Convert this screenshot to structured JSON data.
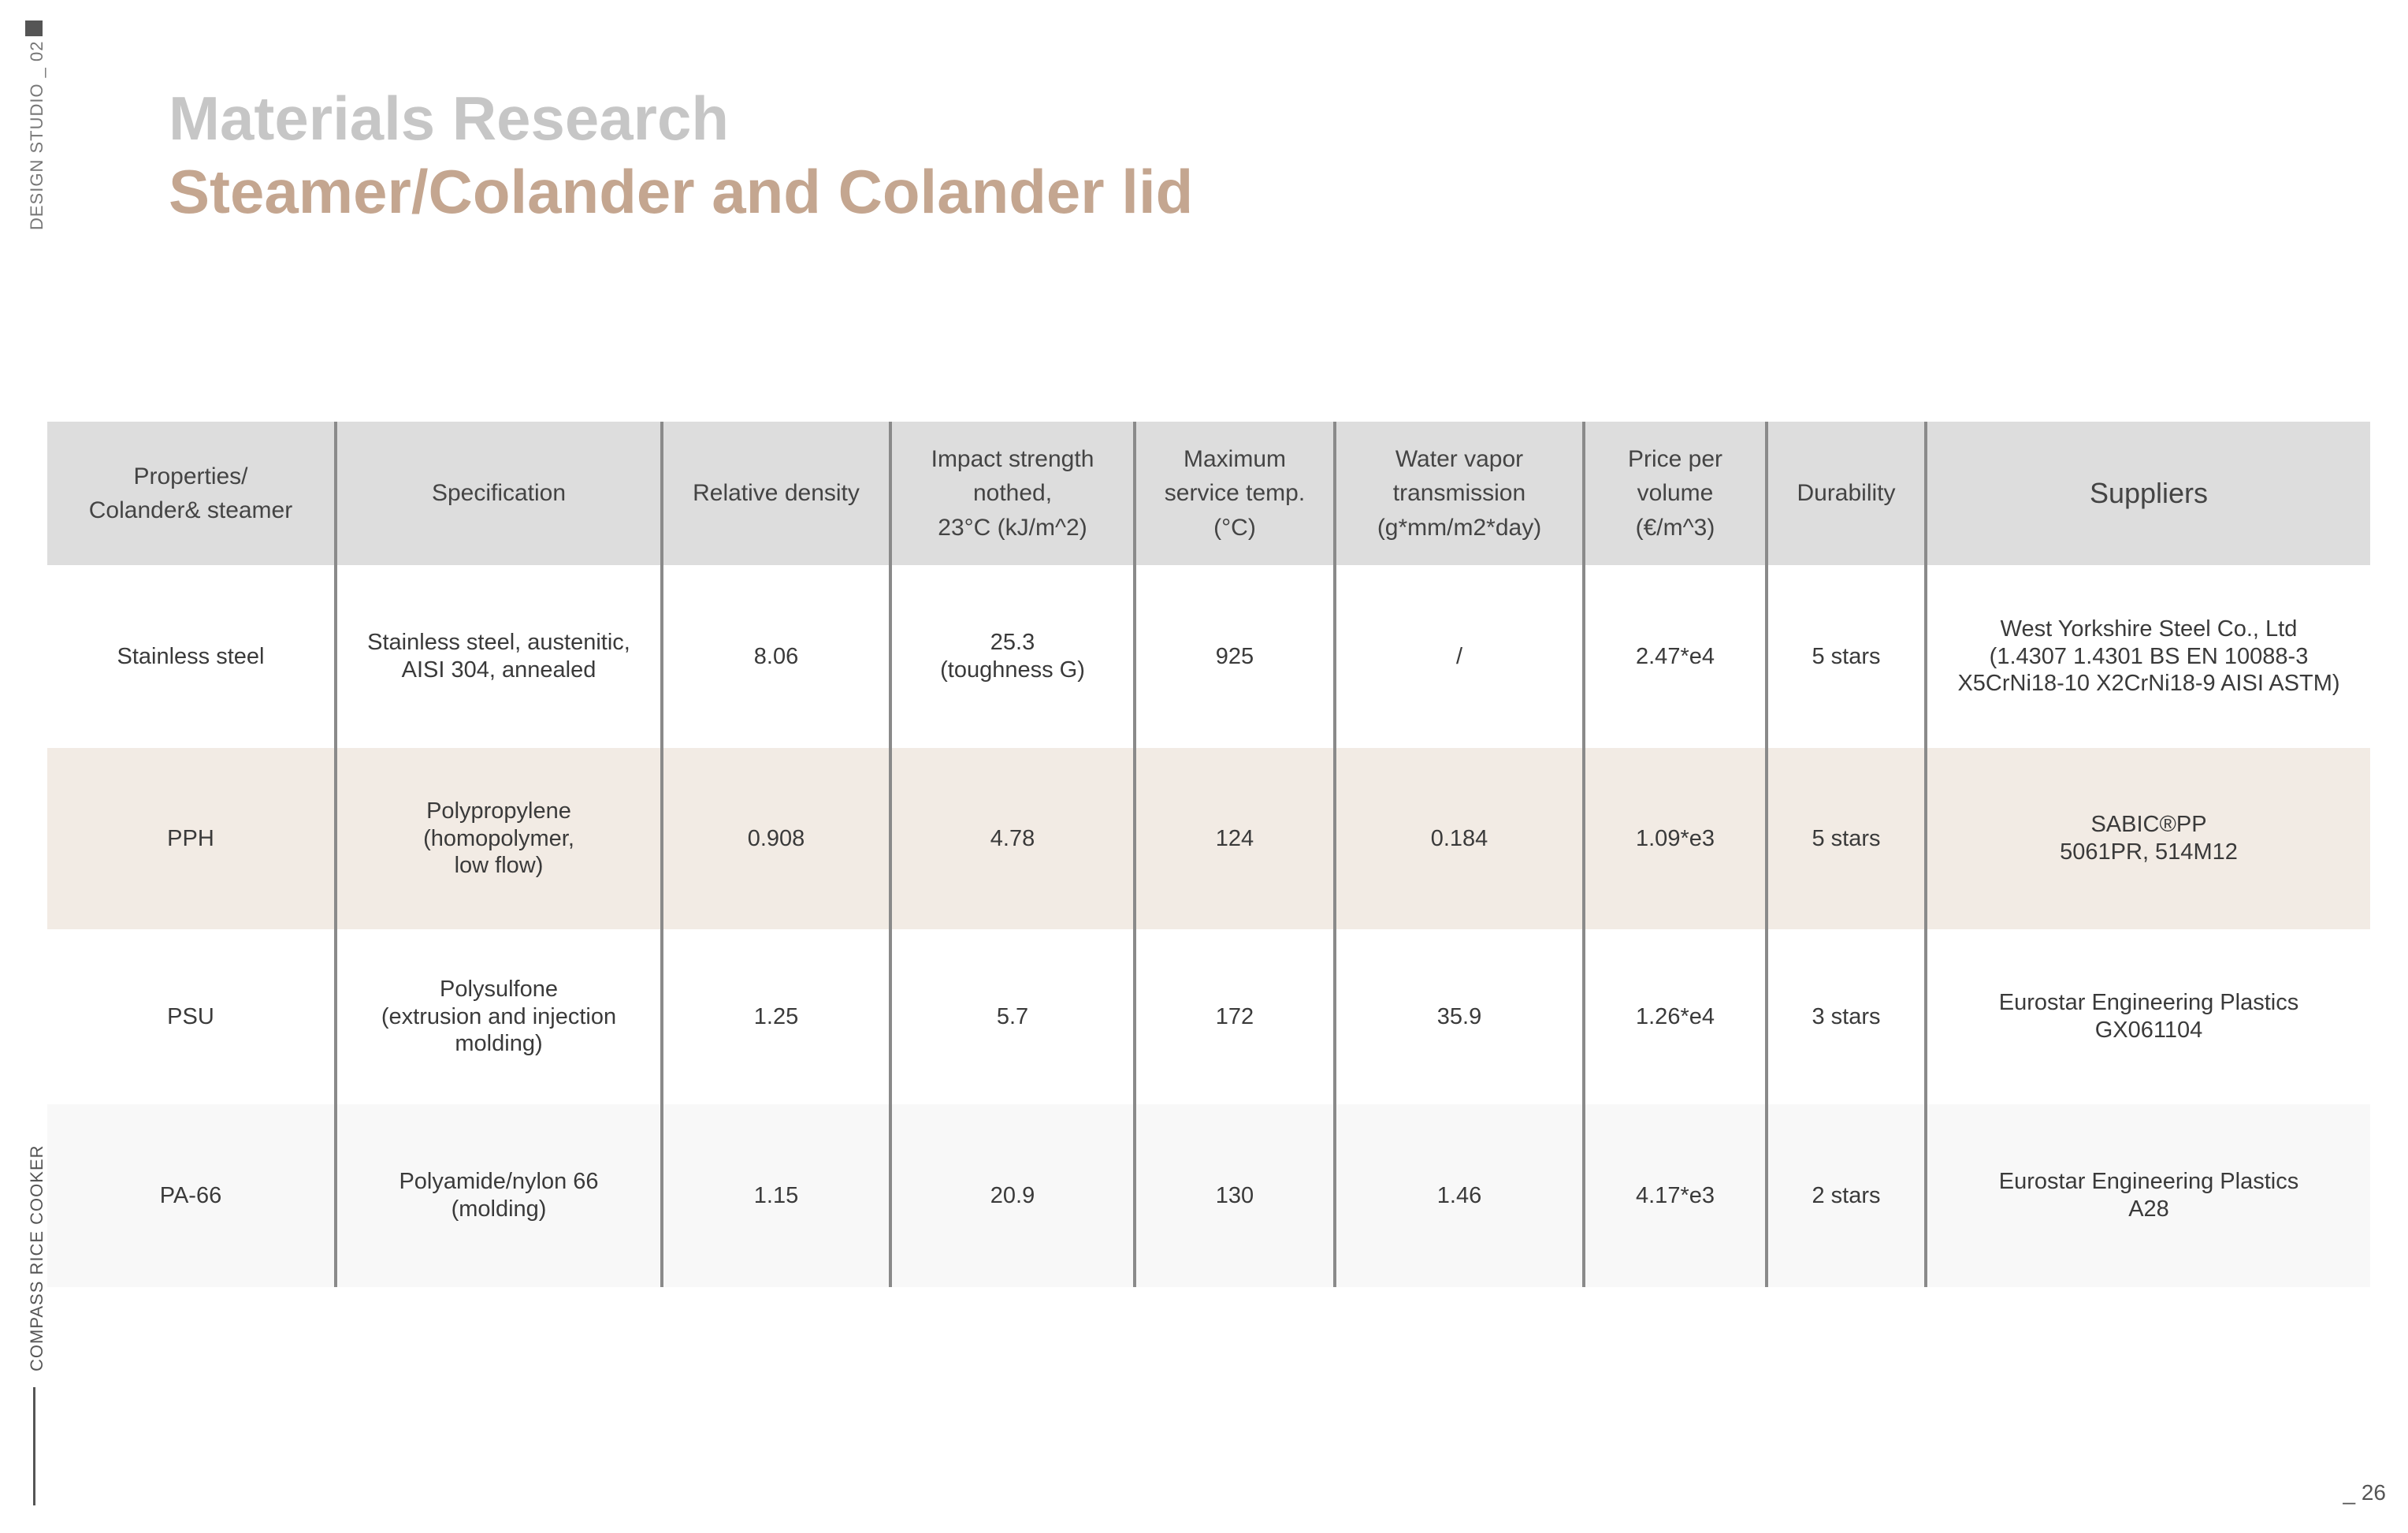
{
  "sidebar": {
    "top_label": "DESIGN STUDIO _ 02",
    "bottom_label": "COMPASS RICE COOKER"
  },
  "header": {
    "title": "Materials Research",
    "subtitle": "Steamer/Colander and Colander lid"
  },
  "page_number": "_ 26",
  "colors": {
    "title": "#c6c6c6",
    "subtitle": "#c4a690",
    "header_bg": "#dddddd",
    "highlight_row": "#f2ebe4"
  },
  "table": {
    "headers": [
      "Properties/\nColander& steamer",
      "Specification",
      "Relative density",
      "Impact strength\nnothed,\n23°C (kJ/m^2)",
      "Maximum\nservice temp.\n(°C)",
      "Water vapor\ntransmission\n(g*mm/m2*day)",
      "Price per\nvolume\n(€/m^3)",
      "Durability",
      "Suppliers"
    ],
    "rows": [
      {
        "material": "Stainless steel",
        "specification": "Stainless steel, austenitic,\nAISI 304, annealed",
        "density": "8.06",
        "impact": "25.3\n(toughness G)",
        "max_temp": "925",
        "water_vapor": "/",
        "price": "2.47*e4",
        "durability": "5 stars",
        "suppliers": "West Yorkshire Steel Co., Ltd\n(1.4307 1.4301 BS EN 10088-3\nX5CrNi18-10 X2CrNi18-9 AISI ASTM)"
      },
      {
        "material": "PPH",
        "specification": "Polypropylene\n(homopolymer,\nlow flow)",
        "density": "0.908",
        "impact": "4.78",
        "max_temp": "124",
        "water_vapor": "0.184",
        "price": "1.09*e3",
        "durability": "5 stars",
        "suppliers": "SABIC®PP\n5061PR, 514M12"
      },
      {
        "material": "PSU",
        "specification": "Polysulfone\n(extrusion and injection\nmolding)",
        "density": "1.25",
        "impact": "5.7",
        "max_temp": "172",
        "water_vapor": "35.9",
        "price": "1.26*e4",
        "durability": "3 stars",
        "suppliers": "Eurostar Engineering Plastics\nGX061104"
      },
      {
        "material": "PA-66",
        "specification": "Polyamide/nylon 66\n(molding)",
        "density": "1.15",
        "impact": "20.9",
        "max_temp": "130",
        "water_vapor": "1.46",
        "price": "4.17*e3",
        "durability": "2 stars",
        "suppliers": "Eurostar Engineering Plastics\nA28"
      }
    ]
  }
}
